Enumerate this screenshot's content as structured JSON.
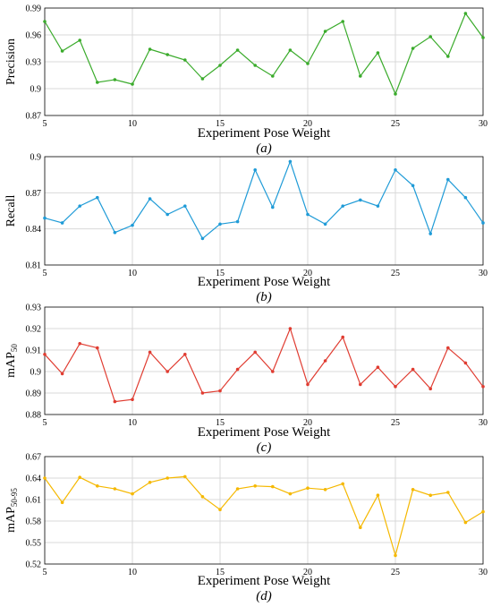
{
  "chart_data": [
    {
      "type": "line",
      "ylabel": "Precision",
      "ylabel_sub": "",
      "xlabel": "Experiment Pose Weight",
      "panel_label": "(a)",
      "x": [
        5,
        6,
        7,
        8,
        9,
        10,
        11,
        12,
        13,
        14,
        15,
        16,
        17,
        18,
        19,
        20,
        21,
        22,
        23,
        24,
        25,
        26,
        27,
        28,
        29,
        30
      ],
      "xticks": [
        5,
        10,
        15,
        20,
        25,
        30
      ],
      "yticks": [
        "0.87",
        "0.9",
        "0.93",
        "0.96",
        "0.99"
      ],
      "ylim": [
        0.87,
        0.99
      ],
      "color": "#3aab2b",
      "grid": true,
      "series": [
        {
          "values": [
            0.975,
            0.942,
            0.954,
            0.907,
            0.91,
            0.905,
            0.944,
            0.938,
            0.932,
            0.911,
            0.926,
            0.943,
            0.926,
            0.914,
            0.943,
            0.928,
            0.964,
            0.975,
            0.914,
            0.94,
            0.894,
            0.945,
            0.958,
            0.936,
            0.984,
            0.957
          ]
        }
      ]
    },
    {
      "type": "line",
      "ylabel": "Recall",
      "ylabel_sub": "",
      "xlabel": "Experiment Pose Weight",
      "panel_label": "(b)",
      "x": [
        5,
        6,
        7,
        8,
        9,
        10,
        11,
        12,
        13,
        14,
        15,
        16,
        17,
        18,
        19,
        20,
        21,
        22,
        23,
        24,
        25,
        26,
        27,
        28,
        29,
        30
      ],
      "xticks": [
        5,
        10,
        15,
        20,
        25,
        30
      ],
      "yticks": [
        "0.81",
        "0.84",
        "0.87",
        "0.9"
      ],
      "ylim": [
        0.81,
        0.9
      ],
      "color": "#1f9bd7",
      "grid": true,
      "series": [
        {
          "values": [
            0.849,
            0.845,
            0.859,
            0.866,
            0.837,
            0.843,
            0.865,
            0.852,
            0.859,
            0.832,
            0.844,
            0.846,
            0.889,
            0.858,
            0.896,
            0.852,
            0.844,
            0.859,
            0.864,
            0.859,
            0.889,
            0.876,
            0.836,
            0.881,
            0.866,
            0.845
          ]
        }
      ]
    },
    {
      "type": "line",
      "ylabel": "mAP",
      "ylabel_sub": "50",
      "xlabel": "Experiment Pose Weight",
      "panel_label": "(c)",
      "x": [
        5,
        6,
        7,
        8,
        9,
        10,
        11,
        12,
        13,
        14,
        15,
        16,
        17,
        18,
        19,
        20,
        21,
        22,
        23,
        24,
        25,
        26,
        27,
        28,
        29,
        30
      ],
      "xticks": [
        5,
        10,
        15,
        20,
        25,
        30
      ],
      "yticks": [
        "0.88",
        "0.89",
        "0.9",
        "0.91",
        "0.92",
        "0.93"
      ],
      "ylim": [
        0.88,
        0.93
      ],
      "color": "#e03c31",
      "grid": true,
      "series": [
        {
          "values": [
            0.908,
            0.899,
            0.913,
            0.911,
            0.886,
            0.887,
            0.909,
            0.9,
            0.908,
            0.89,
            0.891,
            0.901,
            0.909,
            0.9,
            0.92,
            0.894,
            0.905,
            0.916,
            0.894,
            0.902,
            0.893,
            0.901,
            0.892,
            0.911,
            0.904,
            0.893
          ]
        }
      ]
    },
    {
      "type": "line",
      "ylabel": "mAP",
      "ylabel_sub": "50-95",
      "xlabel": "Experiment Pose Weight",
      "panel_label": "(d)",
      "x": [
        5,
        6,
        7,
        8,
        9,
        10,
        11,
        12,
        13,
        14,
        15,
        16,
        17,
        18,
        19,
        20,
        21,
        22,
        23,
        24,
        25,
        26,
        27,
        28,
        29,
        30
      ],
      "xticks": [
        5,
        10,
        15,
        20,
        25,
        30
      ],
      "yticks": [
        "0.52",
        "0.55",
        "0.58",
        "0.61",
        "0.64",
        "0.67"
      ],
      "ylim": [
        0.52,
        0.67
      ],
      "color": "#f5b800",
      "grid": true,
      "series": [
        {
          "values": [
            0.64,
            0.606,
            0.641,
            0.629,
            0.625,
            0.618,
            0.634,
            0.64,
            0.642,
            0.614,
            0.596,
            0.625,
            0.629,
            0.628,
            0.618,
            0.626,
            0.624,
            0.632,
            0.571,
            0.616,
            0.532,
            0.624,
            0.616,
            0.62,
            0.578,
            0.593
          ]
        }
      ]
    }
  ]
}
